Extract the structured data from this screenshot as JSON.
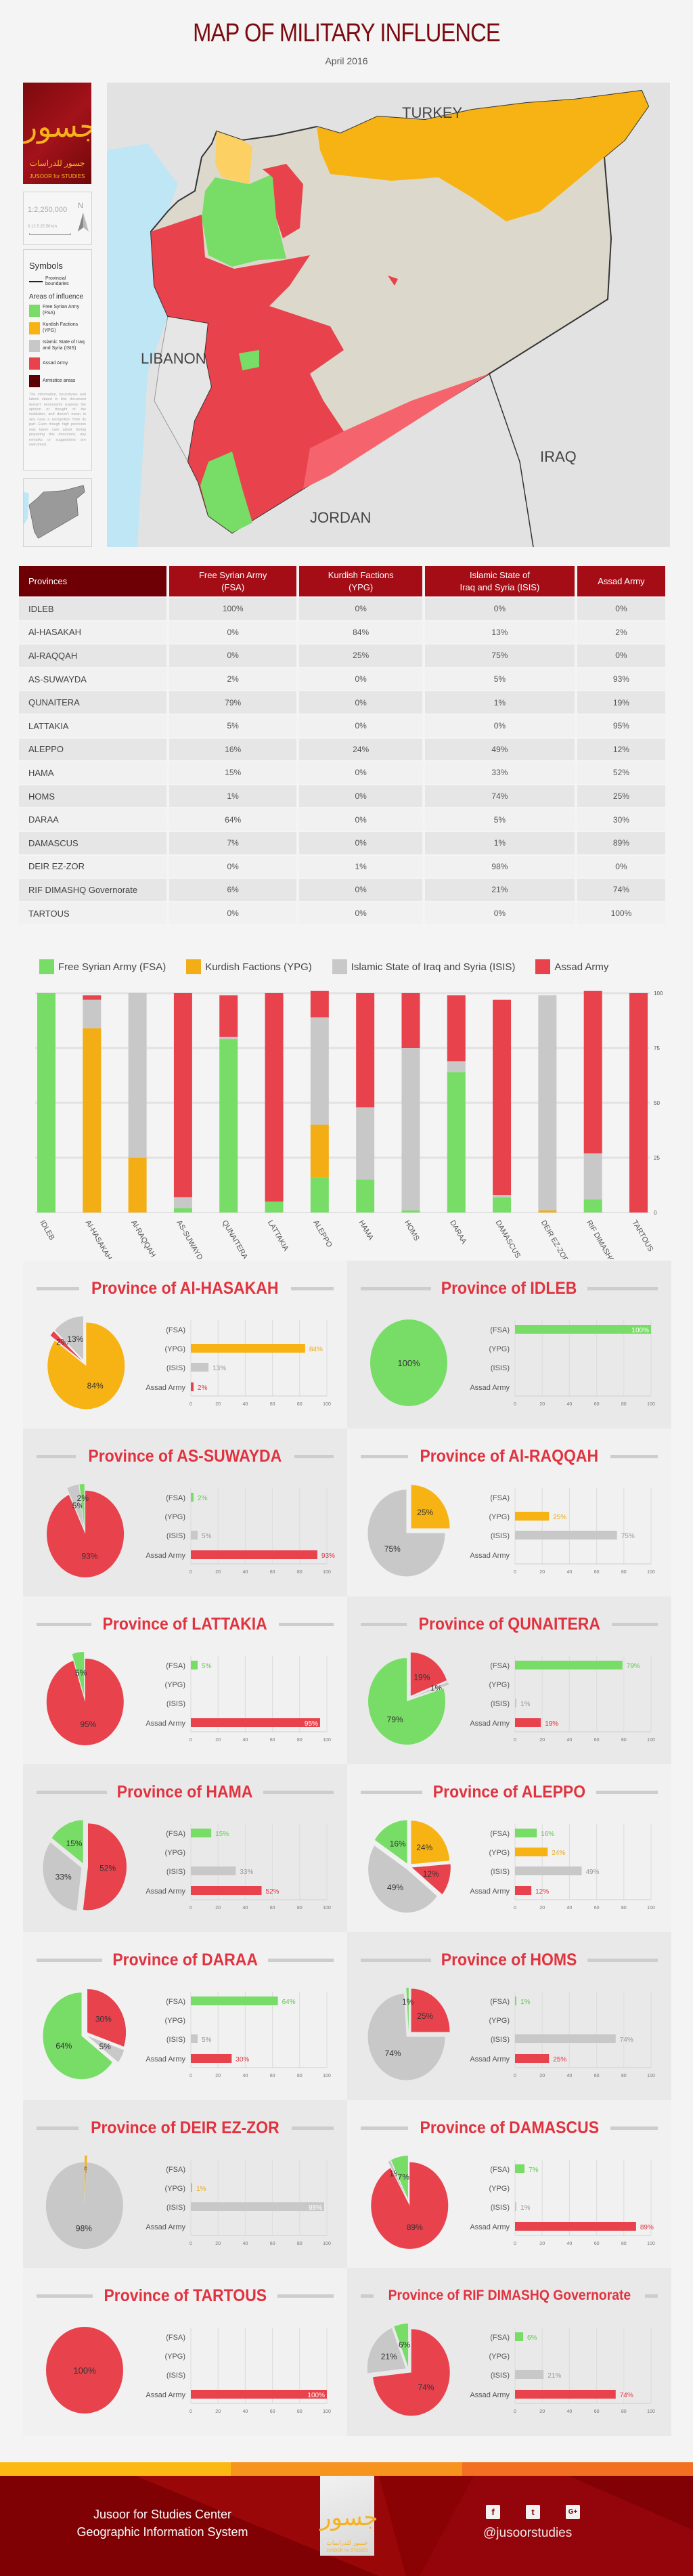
{
  "header": {
    "title": "MAP OF MILITARY INFLUENCE",
    "subtitle": "April 2016"
  },
  "logo": {
    "arabic": "جسور",
    "arabic_full": "جسور للدراسات",
    "english": "JUSOOR for STUDIES"
  },
  "map": {
    "scale": "1:2,250,000",
    "north": "N",
    "scale_units": "0  12.5  25    50 km",
    "labels": {
      "turkey": "TURKEY",
      "lebanon": "LIBANON",
      "jordan": "JORDAN",
      "iraq": "IRAQ"
    },
    "symbols_title": "Symbols",
    "provincial_boundaries": "Provincial boundaries",
    "areas_title": "Areas of influence",
    "legend": [
      {
        "label": "Free Syrian Army (FSA)",
        "color": "#77dd66"
      },
      {
        "label": "Kurdish Factions (YPG)",
        "color": "#f7b313"
      },
      {
        "label": "Islamic State of Iraq and Syria (ISIS)",
        "color": "#c8c8c8"
      },
      {
        "label": "Assad Army",
        "color": "#e8424d"
      },
      {
        "label": "Armistice areas",
        "color": "#5a0004"
      }
    ],
    "disclaimer": "The information, boundaries and labels stated in this document doesn't necessarily express the opinion or thought of the institution, and doesn't mean in any case a recognition from its part. Even though high precision was taken care about during preparing this document, any remarks or suggestions are welcomed."
  },
  "table": {
    "headers": [
      "Provinces",
      "Free Syrian Army\n(FSA)",
      "Kurdish Factions\n(YPG)",
      "Islamic State of\nIraq and Syria (ISIS)",
      "Assad Army"
    ],
    "rows": [
      [
        "IDLEB",
        "100%",
        "0%",
        "0%",
        "0%"
      ],
      [
        "Al-HASAKAH",
        "0%",
        "84%",
        "13%",
        "2%"
      ],
      [
        "Al-RAQQAH",
        "0%",
        "25%",
        "75%",
        "0%"
      ],
      [
        "AS-SUWAYDA",
        "2%",
        "0%",
        "5%",
        "93%"
      ],
      [
        "QUNAITERA",
        "79%",
        "0%",
        "1%",
        "19%"
      ],
      [
        "LATTAKIA",
        "5%",
        "0%",
        "0%",
        "95%"
      ],
      [
        "ALEPPO",
        "16%",
        "24%",
        "49%",
        "12%"
      ],
      [
        "HAMA",
        "15%",
        "0%",
        "33%",
        "52%"
      ],
      [
        "HOMS",
        "1%",
        "0%",
        "74%",
        "25%"
      ],
      [
        "DARAA",
        "64%",
        "0%",
        "5%",
        "30%"
      ],
      [
        "DAMASCUS",
        "7%",
        "0%",
        "1%",
        "89%"
      ],
      [
        "DEIR EZ-ZOR",
        "0%",
        "1%",
        "98%",
        "0%"
      ],
      [
        "RIF DIMASHQ Governorate",
        "6%",
        "0%",
        "21%",
        "74%"
      ],
      [
        "TARTOUS",
        "0%",
        "0%",
        "0%",
        "100%"
      ]
    ]
  },
  "chart_data": [
    {
      "type": "bar",
      "stacked": true,
      "categories": [
        "IDLEB",
        "Al-HASAKAH",
        "Al-RAQQAH",
        "AS-SUWAYDA",
        "QUNAITERA",
        "LATTAKIA",
        "ALEPPO",
        "HAMA",
        "HOMS",
        "DARAA",
        "DAMASCUS",
        "DEIR EZ-ZOR",
        "RIF DIMASHQ Governorate",
        "TARTOUS"
      ],
      "series": [
        {
          "name": "Free Syrian Army (FSA)",
          "color": "#77dd66",
          "values": [
            100,
            0,
            0,
            2,
            79,
            5,
            16,
            15,
            1,
            64,
            7,
            0,
            6,
            0
          ]
        },
        {
          "name": "Kurdish Factions (YPG)",
          "color": "#f2ae14",
          "values": [
            0,
            84,
            25,
            0,
            0,
            0,
            24,
            0,
            0,
            0,
            0,
            1,
            0,
            0
          ]
        },
        {
          "name": "Islamic State of Iraq and Syria (ISIS)",
          "color": "#c8c8c8",
          "values": [
            0,
            13,
            75,
            5,
            1,
            0,
            49,
            33,
            74,
            5,
            1,
            98,
            21,
            0
          ]
        },
        {
          "name": "Assad Army",
          "color": "#e8424d",
          "values": [
            0,
            2,
            0,
            93,
            19,
            95,
            12,
            52,
            25,
            30,
            89,
            0,
            74,
            100
          ]
        }
      ],
      "yticks": [
        0,
        25,
        50,
        75,
        100
      ],
      "ylim": [
        0,
        100
      ],
      "y_axis_side": "right",
      "grid": true,
      "legend": "top"
    }
  ],
  "pies": {
    "bar_labels": [
      "(FSA)",
      "(YPG)",
      "(ISIS)",
      "Assad Army"
    ],
    "axis_ticks": [
      0,
      20,
      40,
      60,
      80,
      100
    ],
    "colors": [
      "#77dd66",
      "#f7b313",
      "#c8c8c8",
      "#e8424d"
    ],
    "label_colors": [
      "#5fc94f",
      "#eaa80e",
      "#999999",
      "#e0333f"
    ],
    "panels": [
      {
        "title": "Province of Al-HASAKAH",
        "values": [
          0,
          84,
          13,
          2
        ]
      },
      {
        "title": "Province of IDLEB",
        "values": [
          100,
          0,
          0,
          0
        ]
      },
      {
        "title": "Province of AS-SUWAYDA",
        "values": [
          2,
          0,
          5,
          93
        ]
      },
      {
        "title": "Province of Al-RAQQAH",
        "values": [
          0,
          25,
          75,
          0
        ]
      },
      {
        "title": "Province of LATTAKIA",
        "values": [
          5,
          0,
          0,
          95
        ]
      },
      {
        "title": "Province of QUNAITERA",
        "values": [
          79,
          0,
          1,
          19
        ]
      },
      {
        "title": "Province of HAMA",
        "values": [
          15,
          0,
          33,
          52
        ]
      },
      {
        "title": "Province of ALEPPO",
        "values": [
          16,
          24,
          49,
          12
        ]
      },
      {
        "title": "Province of DARAA",
        "values": [
          64,
          0,
          5,
          30
        ]
      },
      {
        "title": "Province of HOMS",
        "values": [
          1,
          0,
          74,
          25
        ]
      },
      {
        "title": "Province of DEIR EZ-ZOR",
        "values": [
          0,
          1,
          98,
          0
        ]
      },
      {
        "title": "Province of DAMASCUS",
        "values": [
          7,
          0,
          1,
          89
        ]
      },
      {
        "title": "Province of TARTOUS",
        "values": [
          0,
          0,
          0,
          100
        ]
      },
      {
        "title": "Province of RIF DIMASHQ Governorate",
        "values": [
          6,
          0,
          21,
          74
        ]
      }
    ]
  },
  "footer": {
    "line1": "Jusoor for Studies Center",
    "line2": "Geographic Information System",
    "social": [
      {
        "icon": "facebook-icon",
        "glyph": "f"
      },
      {
        "icon": "twitter-icon",
        "glyph": "t"
      },
      {
        "icon": "google-plus-icon",
        "glyph": "G+"
      }
    ],
    "handle": "@jusoorstudies",
    "band_colors": [
      "#fdb913",
      "#f7941d",
      "#f36f21"
    ]
  }
}
